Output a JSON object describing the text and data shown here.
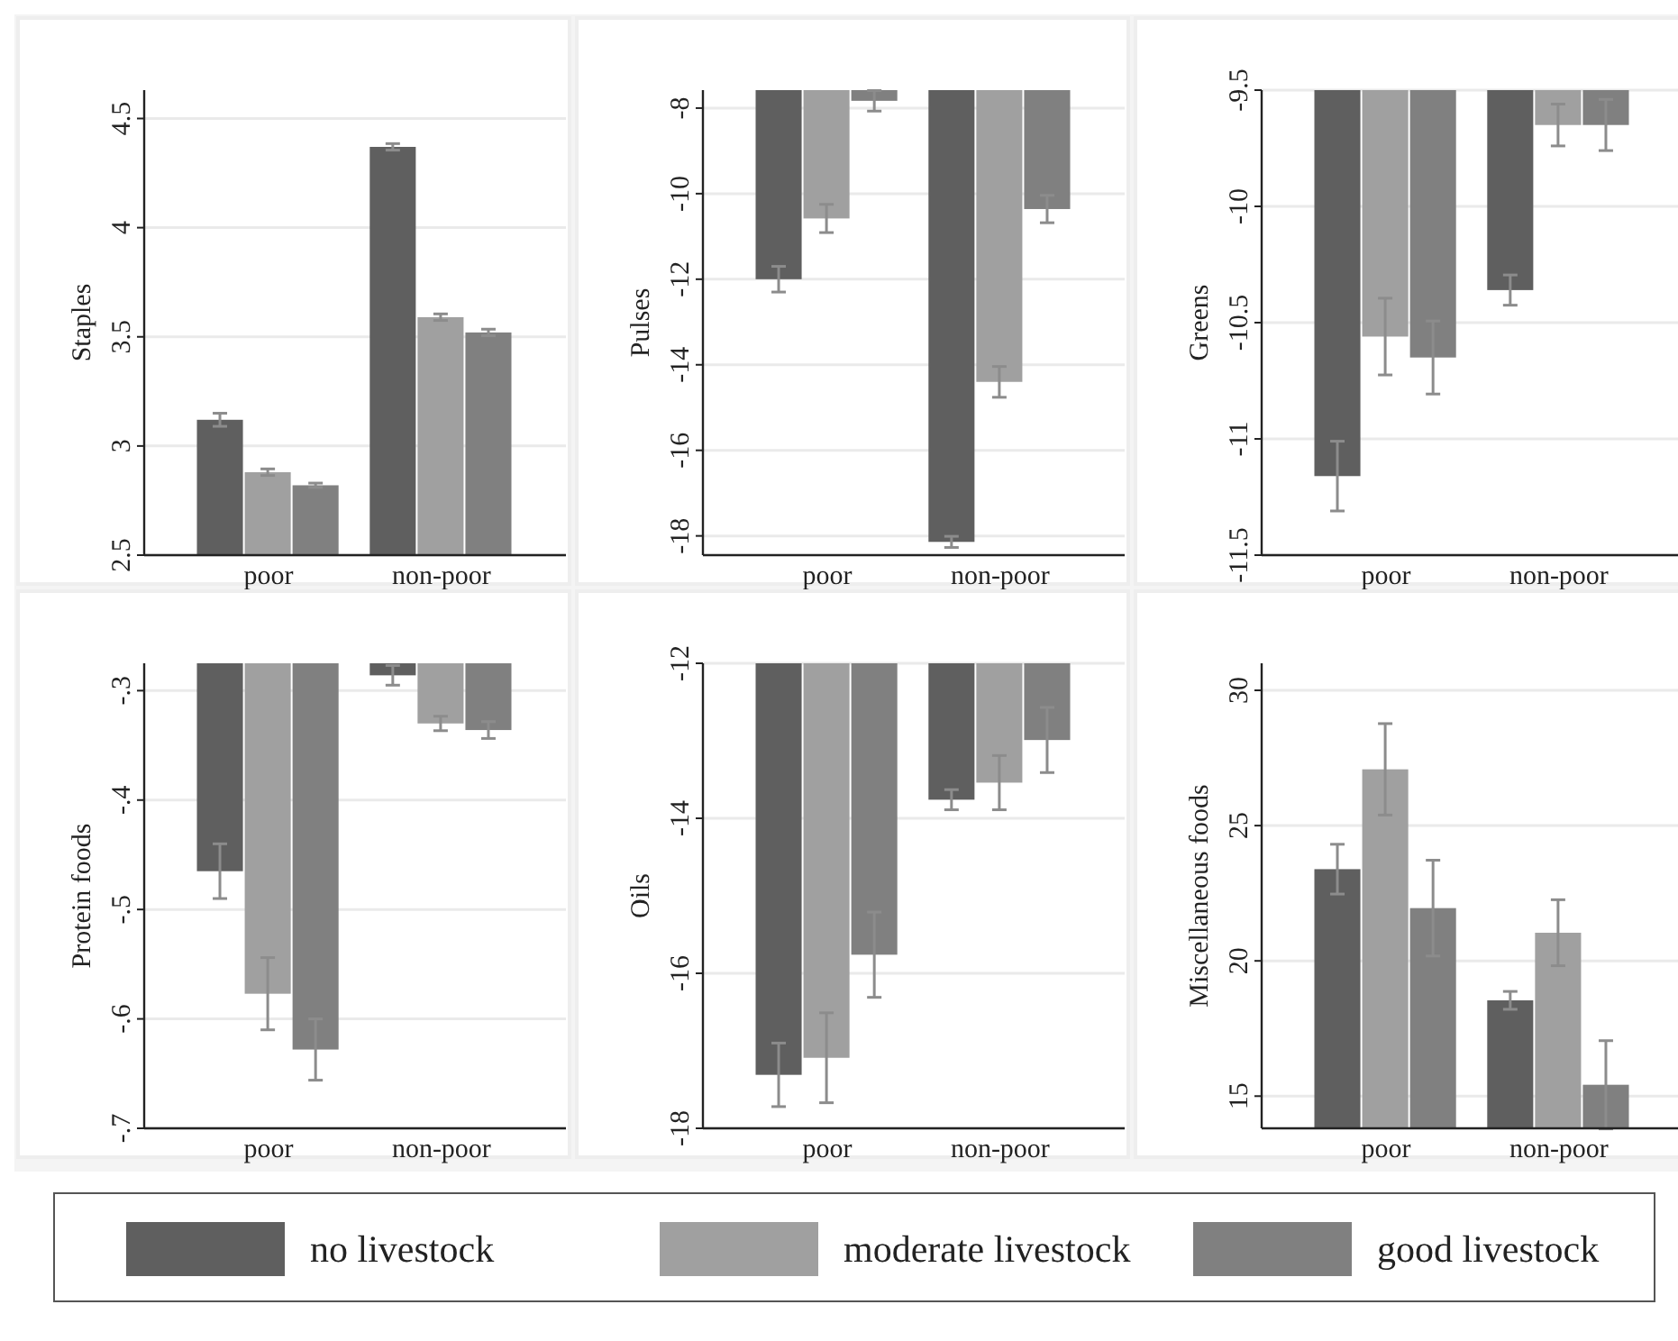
{
  "chart_data": [
    {
      "type": "bar",
      "ylabel": "Staples",
      "categories": [
        "poor",
        "non-poor"
      ],
      "ylim": [
        2.5,
        4.63
      ],
      "yticks": [
        2.5,
        3,
        3.5,
        4,
        4.5
      ],
      "grid": "y",
      "legend": "bottom",
      "series": [
        {
          "name": "no livestock",
          "color": "#5f5f5f",
          "values": [
            3.12,
            4.37
          ],
          "errors": [
            0.03,
            0.015
          ]
        },
        {
          "name": "moderate livestock",
          "color": "#a0a0a0",
          "values": [
            2.88,
            3.59
          ],
          "errors": [
            0.015,
            0.015
          ]
        },
        {
          "name": "good livestock",
          "color": "#808080",
          "values": [
            2.82,
            3.52
          ],
          "errors": [
            0.01,
            0.015
          ]
        }
      ]
    },
    {
      "type": "bar",
      "ylabel": "Pulses",
      "categories": [
        "poor",
        "non-poor"
      ],
      "ylim": [
        -18.45,
        -7.58
      ],
      "yticks": [
        -18,
        -16,
        -14,
        -12,
        -10,
        -8
      ],
      "grid": "y",
      "series": [
        {
          "color": "#5f5f5f",
          "values": [
            -12.0,
            -18.14
          ],
          "errors": [
            0.3,
            0.13
          ]
        },
        {
          "color": "#a0a0a0",
          "values": [
            -10.58,
            -14.4
          ],
          "errors": [
            0.33,
            0.36
          ]
        },
        {
          "color": "#808080",
          "values": [
            -7.83,
            -10.36
          ],
          "errors": [
            0.24,
            0.32
          ]
        }
      ]
    },
    {
      "type": "bar",
      "ylabel": "Greens",
      "categories": [
        "poor",
        "non-poor"
      ],
      "ylim": [
        -11.5,
        -9.5
      ],
      "yticks": [
        -11.5,
        -11,
        -10.5,
        -10,
        -9.5
      ],
      "grid": "y",
      "series": [
        {
          "color": "#5f5f5f",
          "values": [
            -11.16,
            -10.36
          ],
          "errors": [
            0.15,
            0.065
          ]
        },
        {
          "color": "#a0a0a0",
          "values": [
            -10.56,
            -9.65
          ],
          "errors": [
            0.165,
            0.09
          ]
        },
        {
          "color": "#808080",
          "values": [
            -10.65,
            -9.65
          ],
          "errors": [
            0.157,
            0.11
          ]
        }
      ]
    },
    {
      "type": "bar",
      "ylabel": "Protein foods",
      "categories": [
        "poor",
        "non-poor"
      ],
      "ylim": [
        -0.7,
        -0.275
      ],
      "yticks": [
        {
          "value": -0.7,
          "label": "-.7"
        },
        {
          "value": -0.6,
          "label": "-.6"
        },
        {
          "value": -0.5,
          "label": "-.5"
        },
        {
          "value": -0.4,
          "label": "-.4"
        },
        {
          "value": -0.3,
          "label": "-.3"
        }
      ],
      "grid": "y",
      "series": [
        {
          "color": "#5f5f5f",
          "values": [
            -0.465,
            -0.286
          ],
          "errors": [
            0.025,
            0.009
          ]
        },
        {
          "color": "#a0a0a0",
          "values": [
            -0.577,
            -0.33
          ],
          "errors": [
            0.033,
            0.0066
          ]
        },
        {
          "color": "#808080",
          "values": [
            -0.628,
            -0.336
          ],
          "errors": [
            0.028,
            0.0077
          ]
        }
      ]
    },
    {
      "type": "bar",
      "ylabel": "Oils",
      "categories": [
        "poor",
        "non-poor"
      ],
      "ylim": [
        -18,
        -12
      ],
      "yticks": [
        -18,
        -16,
        -14,
        -12
      ],
      "grid": "y",
      "series": [
        {
          "color": "#5f5f5f",
          "values": [
            -17.31,
            -13.76
          ],
          "errors": [
            0.41,
            0.13
          ]
        },
        {
          "color": "#a0a0a0",
          "values": [
            -17.09,
            -13.54
          ],
          "errors": [
            0.58,
            0.35
          ]
        },
        {
          "color": "#808080",
          "values": [
            -15.76,
            -12.99
          ],
          "errors": [
            0.55,
            0.42
          ]
        }
      ]
    },
    {
      "type": "bar",
      "ylabel": "Miscellaneous foods",
      "categories": [
        "poor",
        "non-poor"
      ],
      "ylim": [
        13.81,
        31
      ],
      "yticks": [
        15,
        20,
        25,
        30
      ],
      "grid": "y",
      "series": [
        {
          "color": "#5f5f5f",
          "values": [
            23.39,
            18.54
          ],
          "errors": [
            0.92,
            0.33
          ]
        },
        {
          "color": "#a0a0a0",
          "values": [
            27.08,
            21.04
          ],
          "errors": [
            1.69,
            1.22
          ]
        },
        {
          "color": "#808080",
          "values": [
            21.95,
            15.42
          ],
          "errors": [
            1.77,
            1.63
          ]
        }
      ]
    }
  ]
}
